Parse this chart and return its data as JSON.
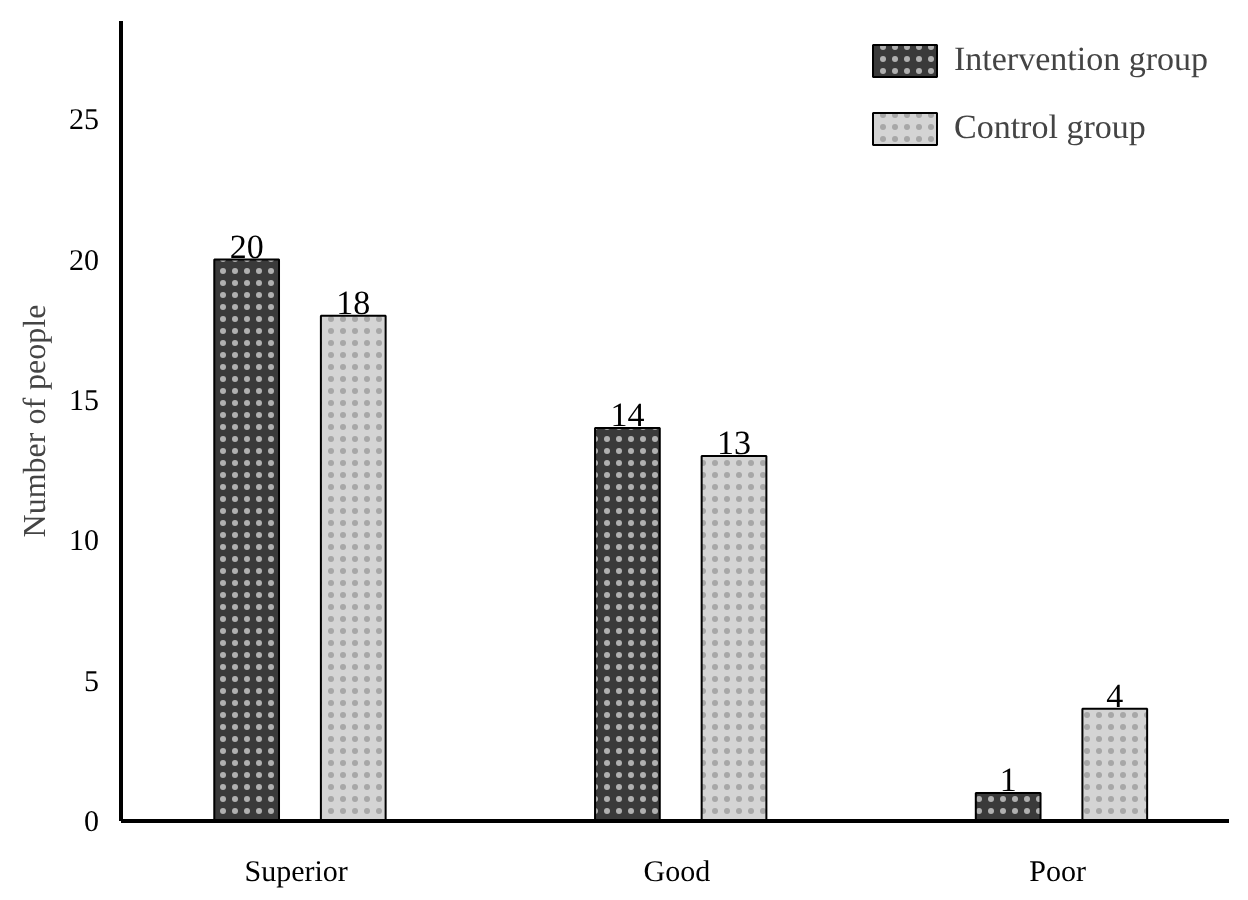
{
  "chart_data": {
    "type": "bar",
    "ylabel": "Number of people",
    "categories": [
      "Superior",
      "Good",
      "Poor"
    ],
    "series": [
      {
        "name": "Intervention group",
        "color": "#3a3a3a",
        "values": [
          20,
          14,
          1
        ]
      },
      {
        "name": "Control group",
        "color": "#d4d4d4",
        "values": [
          18,
          13,
          4
        ]
      }
    ],
    "ylim": [
      0,
      28.5
    ],
    "yticks": [
      0,
      5,
      10,
      15,
      20,
      25
    ],
    "data_labels": true,
    "legend": "top right",
    "grid": false
  }
}
